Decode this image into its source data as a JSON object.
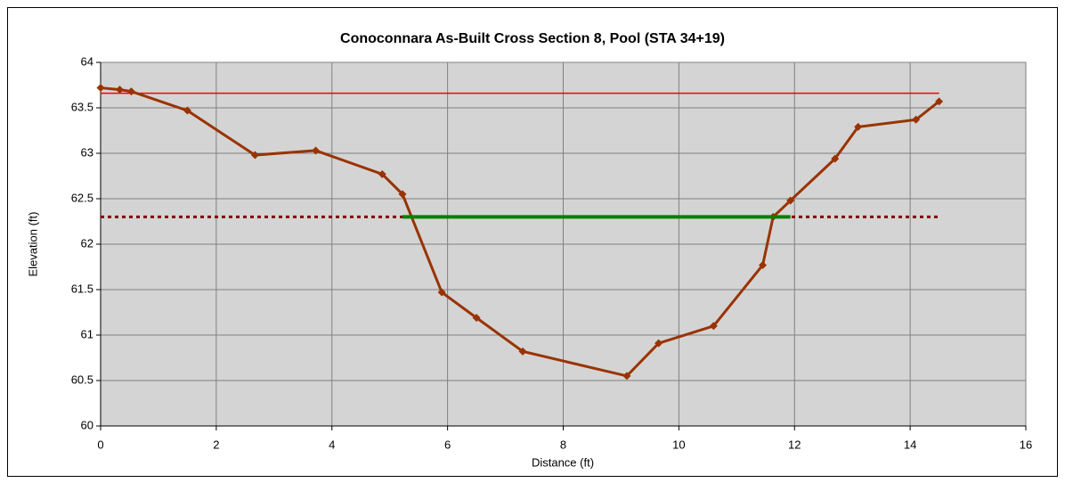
{
  "chart_data": {
    "type": "line",
    "title": "Conoconnara As-Built Cross Section 8, Pool (STA 34+19)",
    "x_label": "Distance (ft)",
    "y_label": "Elevation (ft)",
    "xlim": [
      0,
      16
    ],
    "xticks": [
      0,
      2,
      4,
      6,
      8,
      10,
      12,
      14,
      16
    ],
    "ylim": [
      60,
      64
    ],
    "yticks": [
      60,
      60.5,
      61,
      61.5,
      62,
      62.5,
      63,
      63.5,
      64
    ],
    "grid": true,
    "series": [
      {
        "color": "#ff0000",
        "x": [
          0,
          14.5
        ],
        "values": [
          63.66,
          63.66
        ]
      },
      {
        "color": "#800000",
        "dash": true,
        "x": [
          0,
          14.5
        ],
        "values": [
          62.3,
          62.3
        ]
      },
      {
        "color": "#993300",
        "marker": "diamond",
        "x": [
          0,
          0.33,
          0.53,
          1.5,
          2.67,
          3.72,
          4.87,
          5.22,
          5.9,
          6.5,
          7.3,
          9.1,
          9.65,
          10.6,
          11.45,
          11.63,
          11.93,
          12.7,
          13.1,
          14.1,
          14.5
        ],
        "values": [
          63.72,
          63.7,
          63.68,
          63.47,
          62.98,
          63.03,
          62.77,
          62.55,
          61.47,
          61.19,
          60.82,
          60.55,
          60.91,
          61.1,
          61.77,
          62.3,
          62.48,
          62.94,
          63.29,
          63.37,
          63.57
        ]
      },
      {
        "color": "#008000",
        "x": [
          5.22,
          11.93
        ],
        "values": [
          62.3,
          62.3
        ]
      }
    ]
  }
}
